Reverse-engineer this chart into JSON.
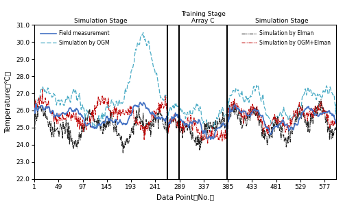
{
  "xlabel": "Data Point（No.）",
  "ylabel": "Temperature（℃）",
  "ylim": [
    22.0,
    31.0
  ],
  "yticks": [
    22.0,
    23.0,
    24.0,
    25.0,
    26.0,
    27.0,
    28.0,
    29.0,
    30.0,
    31.0
  ],
  "xticks": [
    1,
    49,
    97,
    145,
    193,
    241,
    289,
    337,
    385,
    433,
    481,
    529,
    577
  ],
  "n_points": 600,
  "vline1": 265,
  "vline2": 288,
  "vline3": 384,
  "colors": {
    "field": "#4472C4",
    "ogm": "#4BACC6",
    "elman": "#1F1F1F",
    "ogm_elman": "#C00000"
  },
  "background": "#FFFFFF"
}
